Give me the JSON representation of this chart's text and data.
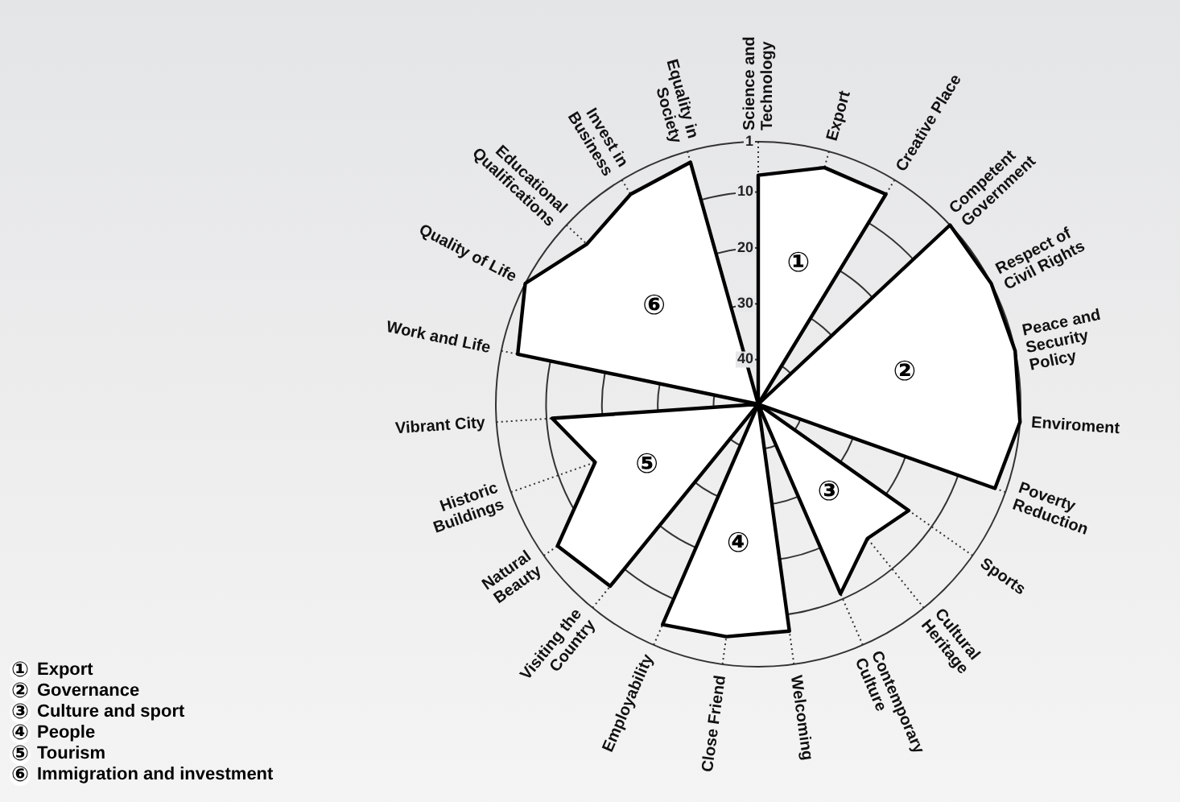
{
  "chart_data": {
    "type": "radar",
    "categories": [
      "Science and Technology",
      "Export",
      "Creative Place",
      "Competent Government",
      "Respect of Civil Rights",
      "Peace and Security Policy",
      "Enviroment",
      "Poverty Reduction",
      "Sports",
      "Cultural Heritage",
      "Contemporary Culture",
      "Welcoming",
      "Close Friend",
      "Employability",
      "Visiting the Country",
      "Natural Beauty",
      "Historic Buildings",
      "Vibrant City",
      "Work and Life",
      "Quality of Life",
      "Educational Qualifications",
      "Invest in Business",
      "Equality in Society"
    ],
    "series": [
      {
        "name": "Export",
        "color": "#ffffff",
        "values": [
          7,
          4,
          4,
          null,
          null,
          null,
          null,
          null,
          null,
          null,
          null,
          null,
          null,
          null,
          null,
          null,
          null,
          null,
          null,
          null,
          null,
          null,
          null
        ]
      },
      {
        "name": "Governance",
        "color": "#ffffff",
        "values": [
          null,
          null,
          null,
          1,
          1,
          1,
          1,
          3,
          null,
          null,
          null,
          null,
          null,
          null,
          null,
          null,
          null,
          null,
          null,
          null,
          null,
          null,
          null
        ]
      },
      {
        "name": "Culture and sport",
        "color": "#ffffff",
        "values": [
          null,
          null,
          null,
          null,
          null,
          null,
          null,
          null,
          15,
          17,
          11,
          null,
          null,
          null,
          null,
          null,
          null,
          null,
          null,
          null,
          null,
          null,
          null
        ]
      },
      {
        "name": "People",
        "color": "#ffffff",
        "values": [
          null,
          null,
          null,
          null,
          null,
          null,
          null,
          null,
          null,
          null,
          null,
          7,
          6,
          5,
          null,
          null,
          null,
          null,
          null,
          null,
          null,
          null,
          null
        ]
      },
      {
        "name": "Tourism",
        "color": "#ffffff",
        "values": [
          null,
          null,
          null,
          null,
          null,
          null,
          null,
          null,
          null,
          null,
          null,
          null,
          null,
          null,
          6,
          4,
          17,
          11,
          null,
          null,
          null,
          null,
          null
        ]
      },
      {
        "name": "Immigration and investment",
        "color": "#ffffff",
        "values": [
          null,
          null,
          null,
          null,
          null,
          null,
          null,
          null,
          null,
          null,
          null,
          null,
          null,
          null,
          null,
          null,
          null,
          null,
          4,
          1,
          6,
          4,
          3
        ]
      }
    ],
    "annotations": [
      "①",
      "②",
      "③",
      "④",
      "⑤",
      "⑥"
    ],
    "ylim": [
      48,
      1
    ],
    "yticks": [
      1,
      10,
      20,
      30,
      40
    ],
    "grid": true,
    "legend": "bottom left"
  }
}
